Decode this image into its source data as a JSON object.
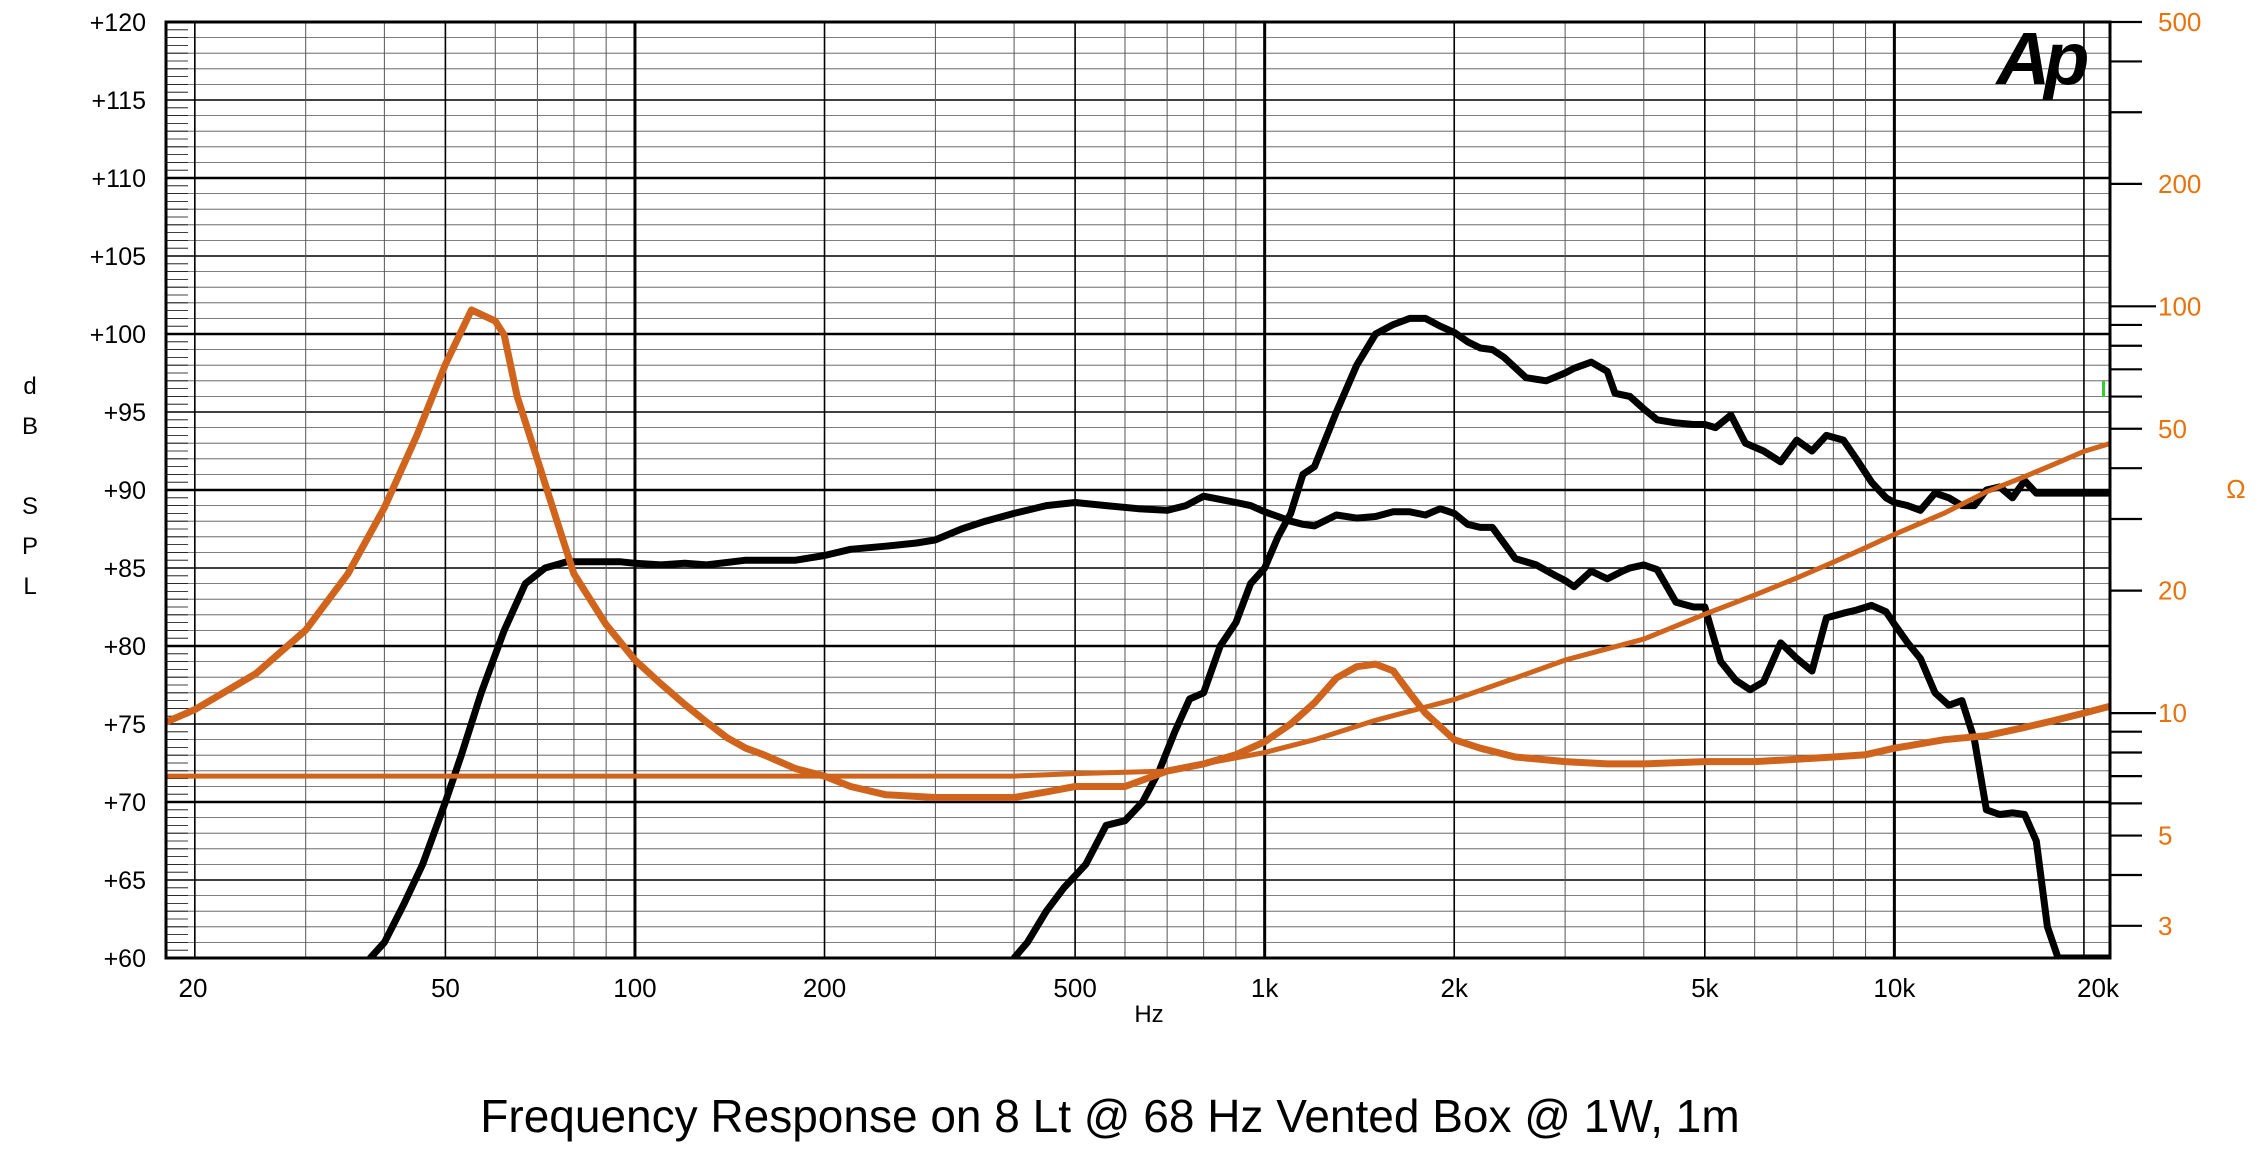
{
  "chart_data": {
    "type": "line",
    "title": "Frequency Response on 8 Lt @ 68 Hz Vented Box @ 1W, 1m",
    "xlabel": "Hz",
    "ylabel_left": [
      "d",
      "B",
      "S",
      "P",
      "L"
    ],
    "ylabel_right": "Ω",
    "logo": "Ap",
    "x_scale": "log",
    "xlim": [
      18,
      22000
    ],
    "ylim_left": [
      60,
      120
    ],
    "ylim_right": [
      2.5,
      500
    ],
    "y_right_scale": "log",
    "grid": true,
    "x_ticks": [
      {
        "value": 20,
        "label": "20"
      },
      {
        "value": 50,
        "label": "50"
      },
      {
        "value": 100,
        "label": "100"
      },
      {
        "value": 200,
        "label": "200"
      },
      {
        "value": 500,
        "label": "500"
      },
      {
        "value": 1000,
        "label": "1k"
      },
      {
        "value": 2000,
        "label": "2k"
      },
      {
        "value": 5000,
        "label": "5k"
      },
      {
        "value": 10000,
        "label": "10k"
      },
      {
        "value": 20000,
        "label": "20k"
      }
    ],
    "y_left_ticks": [
      {
        "value": 120,
        "label": "+120"
      },
      {
        "value": 115,
        "label": "+115"
      },
      {
        "value": 110,
        "label": "+110"
      },
      {
        "value": 105,
        "label": "+105"
      },
      {
        "value": 100,
        "label": "+100"
      },
      {
        "value": 95,
        "label": "+95"
      },
      {
        "value": 90,
        "label": "+90"
      },
      {
        "value": 85,
        "label": "+85"
      },
      {
        "value": 80,
        "label": "+80"
      },
      {
        "value": 75,
        "label": "+75"
      },
      {
        "value": 70,
        "label": "+70"
      },
      {
        "value": 65,
        "label": "+65"
      },
      {
        "value": 60,
        "label": "+60"
      }
    ],
    "y_right_ticks": [
      {
        "value": 500,
        "label": "500"
      },
      {
        "value": 200,
        "label": "200"
      },
      {
        "value": 100,
        "label": "100"
      },
      {
        "value": 50,
        "label": "50"
      },
      {
        "value": 20,
        "label": "20"
      },
      {
        "value": 10,
        "label": "10"
      },
      {
        "value": 5,
        "label": "5"
      },
      {
        "value": 3,
        "label": "3"
      }
    ],
    "colors": {
      "spl": "#000000",
      "impedance": "#d0641c",
      "tick_right": "#e8720c",
      "grid_major": "#000000",
      "grid_minor": "#555555",
      "marker": "#33cc33"
    },
    "series": [
      {
        "axis": "left",
        "x": [
          38,
          40,
          43,
          46,
          50,
          53,
          57,
          62,
          67,
          72,
          78,
          83,
          88,
          95,
          100,
          110,
          120,
          130,
          150,
          180,
          200,
          220,
          250,
          280,
          300,
          330,
          360,
          400,
          450,
          500,
          560,
          630,
          700,
          750,
          800,
          850,
          900,
          950,
          1000,
          1050,
          1100,
          1150,
          1200,
          1300,
          1400,
          1500,
          1600,
          1700,
          1800,
          1900,
          2000,
          2100,
          2200,
          2300,
          2500,
          2700,
          2900,
          3000,
          3100,
          3300,
          3500,
          3700,
          3800,
          4000,
          4200,
          4500,
          4800,
          5000,
          5300,
          5600,
          5900,
          6200,
          6600,
          7000,
          7400,
          7800,
          8300,
          8700,
          9200,
          9700,
          10000,
          10500,
          11000,
          11600,
          12200,
          12800,
          13400,
          14000,
          14700,
          15400,
          16100,
          16800,
          17500,
          18200,
          19000,
          20000,
          21000,
          22000
        ],
        "y": [
          60,
          61,
          63.5,
          66,
          70,
          73,
          77,
          81,
          84,
          85,
          85.4,
          85.4,
          85.4,
          85.4,
          85.3,
          85.2,
          85.3,
          85.2,
          85.5,
          85.5,
          85.8,
          86.2,
          86.4,
          86.6,
          86.8,
          87.5,
          88,
          88.5,
          89,
          89.2,
          89,
          88.8,
          88.7,
          89,
          89.6,
          89.4,
          89.2,
          89,
          88.6,
          88.3,
          88,
          87.8,
          87.7,
          88.4,
          88.2,
          88.3,
          88.6,
          88.6,
          88.4,
          88.8,
          88.5,
          87.8,
          87.6,
          87.6,
          85.6,
          85.2,
          84.5,
          84.2,
          83.8,
          84.8,
          84.3,
          84.8,
          85,
          85.2,
          84.9,
          82.8,
          82.5,
          82.5,
          79,
          77.8,
          77.2,
          77.7,
          80.2,
          79.2,
          78.4,
          81.8,
          82.1,
          82.3,
          82.6,
          82.2,
          81.4,
          80.2,
          79.2,
          77,
          76.2,
          76.5,
          74,
          69.5,
          69.2,
          69.3,
          69.2,
          67.5,
          62,
          60,
          60,
          60,
          60,
          60
        ]
      },
      {
        "axis": "left",
        "x": [
          400,
          420,
          450,
          480,
          520,
          560,
          600,
          640,
          680,
          720,
          760,
          800,
          850,
          900,
          950,
          1000,
          1050,
          1100,
          1150,
          1200,
          1300,
          1400,
          1500,
          1600,
          1700,
          1800,
          1900,
          2000,
          2100,
          2200,
          2300,
          2400,
          2600,
          2800,
          3000,
          3100,
          3200,
          3300,
          3500,
          3600,
          3800,
          4000,
          4200,
          4500,
          4800,
          5000,
          5200,
          5500,
          5800,
          6200,
          6600,
          7000,
          7400,
          7800,
          8300,
          8700,
          9200,
          9700,
          10000,
          10500,
          11000,
          11600,
          12200,
          12800,
          13400,
          14000,
          14700,
          15400,
          16100,
          16800,
          17500,
          18200,
          19000,
          20000,
          21000,
          22000
        ],
        "y": [
          60,
          61,
          63,
          64.5,
          66,
          68.5,
          68.8,
          70,
          72,
          74.5,
          76.6,
          77,
          80,
          81.5,
          84,
          85,
          87,
          88.5,
          91,
          91.5,
          95,
          98,
          100,
          100.6,
          101,
          101,
          100.5,
          100.1,
          99.5,
          99.1,
          99,
          98.5,
          97.2,
          97,
          97.5,
          97.8,
          98,
          98.2,
          97.6,
          96.2,
          96,
          95.2,
          94.5,
          94.3,
          94.2,
          94.2,
          94,
          94.8,
          93,
          92.5,
          91.8,
          93.2,
          92.5,
          93.5,
          93.2,
          92,
          90.5,
          89.5,
          89.2,
          89,
          88.7,
          89.8,
          89.5,
          89,
          89,
          90,
          90.2,
          89.5,
          90.6,
          89.8,
          89.8,
          89.8,
          89.8,
          89.8,
          89.8,
          89.8
        ]
      },
      {
        "axis": "right",
        "x": [
          18,
          20,
          25,
          30,
          35,
          40,
          45,
          50,
          55,
          60,
          62,
          65,
          70,
          75,
          80,
          90,
          100,
          110,
          120,
          130,
          140,
          150,
          160,
          180,
          200,
          220,
          250,
          300,
          400,
          450,
          500,
          600,
          700,
          800,
          900,
          1000,
          1100,
          1200,
          1300,
          1400,
          1500,
          1600,
          1700,
          1800,
          2000,
          2200,
          2500,
          3000,
          3500,
          4000,
          5000,
          6000,
          7000,
          8000,
          9000,
          10000,
          12000,
          14000,
          16000,
          18000,
          20000,
          22000
        ],
        "y": [
          9.5,
          10.2,
          12.5,
          16,
          22,
          32,
          48,
          72,
          98,
          92,
          85,
          60,
          42,
          30,
          22,
          16.5,
          13.5,
          11.8,
          10.5,
          9.5,
          8.7,
          8.2,
          7.9,
          7.3,
          7.0,
          6.6,
          6.3,
          6.2,
          6.2,
          6.4,
          6.6,
          6.6,
          7.2,
          7.5,
          7.9,
          8.5,
          9.4,
          10.6,
          12.2,
          13.0,
          13.2,
          12.7,
          11.2,
          10.0,
          8.6,
          8.2,
          7.8,
          7.6,
          7.5,
          7.5,
          7.6,
          7.6,
          7.7,
          7.8,
          7.9,
          8.2,
          8.6,
          8.8,
          9.2,
          9.6,
          10.0,
          10.4
        ]
      },
      {
        "axis": "right",
        "x": [
          18,
          30,
          50,
          100,
          200,
          300,
          400,
          500,
          700,
          800,
          1000,
          1200,
          1500,
          2000,
          2500,
          3000,
          4000,
          5000,
          6000,
          7000,
          8000,
          9000,
          10000,
          12000,
          14000,
          16000,
          18000,
          20000,
          22000
        ],
        "y": [
          7.0,
          7.0,
          7.0,
          7.0,
          7.0,
          7.0,
          7.0,
          7.1,
          7.2,
          7.5,
          8.0,
          8.6,
          9.6,
          10.8,
          12.2,
          13.5,
          15.2,
          17.5,
          19.5,
          21.5,
          23.5,
          25.5,
          27.5,
          31,
          35,
          38,
          41,
          44,
          46
        ]
      }
    ]
  }
}
